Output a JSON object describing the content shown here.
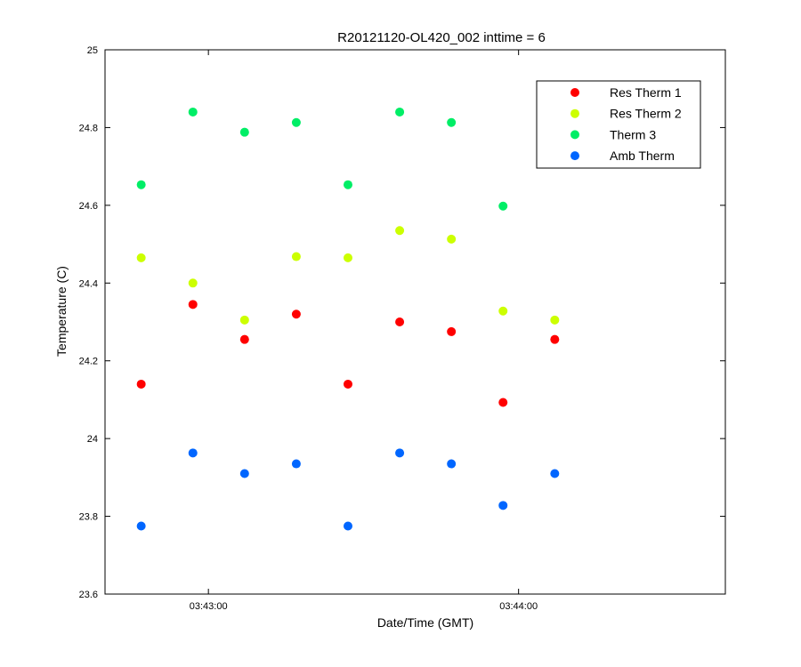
{
  "chart_data": {
    "type": "scatter",
    "title": "R20121120-OL420_002 inttime = 6",
    "xlabel": "Date/Time (GMT)",
    "ylabel": "Temperature (C)",
    "x_unit": "time (GMT)",
    "xlim": [
      "03:42:40",
      "03:44:40"
    ],
    "ylim": [
      23.6,
      25.0
    ],
    "x_ticks": [
      "03:43:00",
      "03:44:00"
    ],
    "y_ticks": [
      "23.6",
      "23.8",
      "24",
      "24.2",
      "24.4",
      "24.6",
      "24.8",
      "25"
    ],
    "grid": false,
    "legend_position": "top-right",
    "x": [
      "03:42:47",
      "03:42:57",
      "03:43:07",
      "03:43:17",
      "03:43:27",
      "03:43:37",
      "03:43:47",
      "03:43:57",
      "03:44:07"
    ],
    "series": [
      {
        "name": "Res Therm 1",
        "color": "#ff0000",
        "values": [
          24.14,
          24.345,
          24.255,
          24.32,
          24.14,
          24.3,
          24.275,
          24.093,
          24.255
        ]
      },
      {
        "name": "Res Therm 2",
        "color": "#ccff00",
        "values": [
          24.465,
          24.4,
          24.305,
          24.468,
          24.465,
          24.535,
          24.513,
          24.328,
          24.305
        ]
      },
      {
        "name": "Therm 3",
        "color": "#00ee66",
        "values": [
          24.653,
          24.84,
          24.788,
          24.813,
          24.653,
          24.84,
          24.813,
          24.598,
          null
        ]
      },
      {
        "name": "Amb Therm",
        "color": "#0066ff",
        "values": [
          23.775,
          23.963,
          23.91,
          23.935,
          23.775,
          23.963,
          23.935,
          23.828,
          23.91
        ]
      }
    ]
  }
}
